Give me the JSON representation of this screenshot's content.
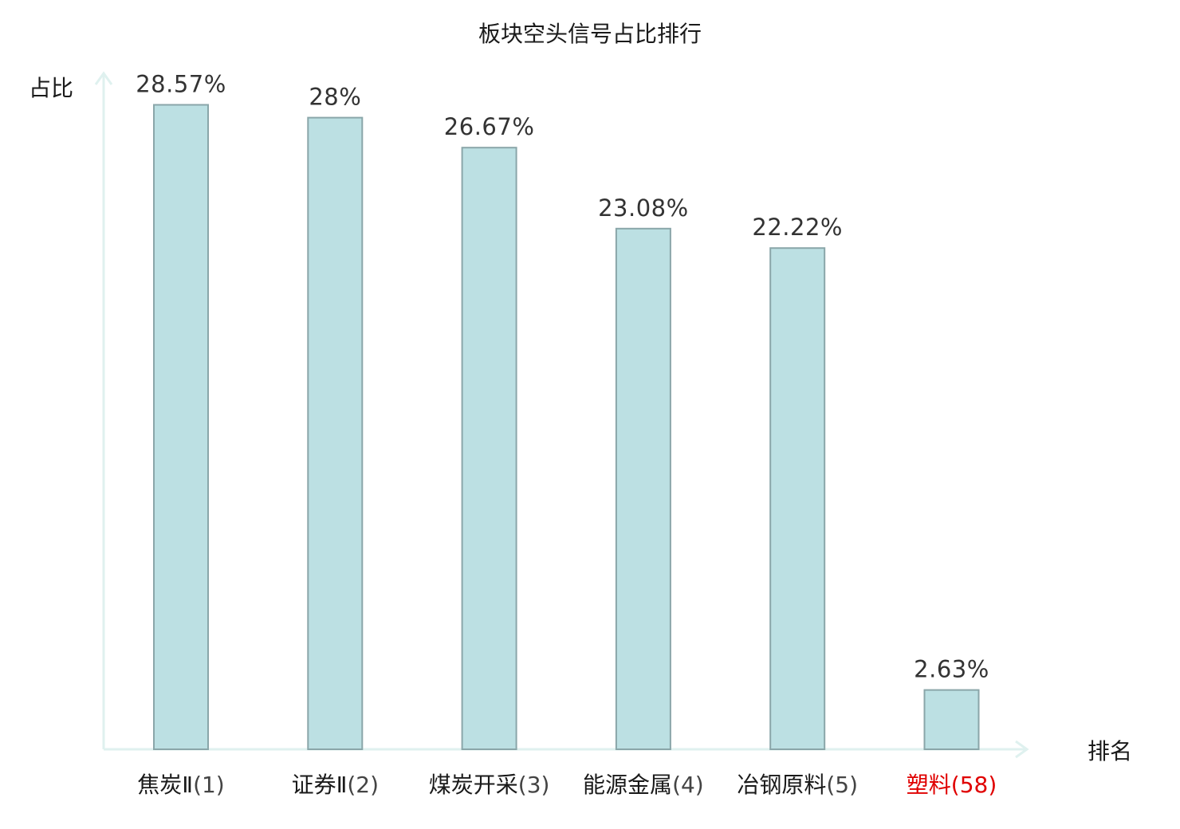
{
  "chart_data": {
    "type": "bar",
    "title": "板块空头信号占比排行",
    "ylabel": "占比",
    "xlabel": "排名",
    "ylim": [
      0,
      30
    ],
    "grid": false,
    "categories": [
      {
        "name": "焦炭Ⅱ",
        "rank": "(1)",
        "highlight": false
      },
      {
        "name": "证券Ⅱ",
        "rank": "(2)",
        "highlight": false
      },
      {
        "name": "煤炭开采",
        "rank": "(3)",
        "highlight": false
      },
      {
        "name": "能源金属",
        "rank": "(4)",
        "highlight": false
      },
      {
        "name": "冶钢原料",
        "rank": "(5)",
        "highlight": false
      },
      {
        "name": "塑料",
        "rank": "(58)",
        "highlight": true
      }
    ],
    "values": [
      28.57,
      28,
      26.67,
      23.08,
      22.22,
      2.63
    ],
    "value_labels": [
      "28.57%",
      "28%",
      "26.67%",
      "23.08%",
      "22.22%",
      "2.63%"
    ],
    "colors": {
      "bar_fill": "#bce0e3",
      "bar_stroke": "#8aa6a9",
      "axis": "#dff1ef",
      "highlight_text": "#e00000"
    }
  }
}
